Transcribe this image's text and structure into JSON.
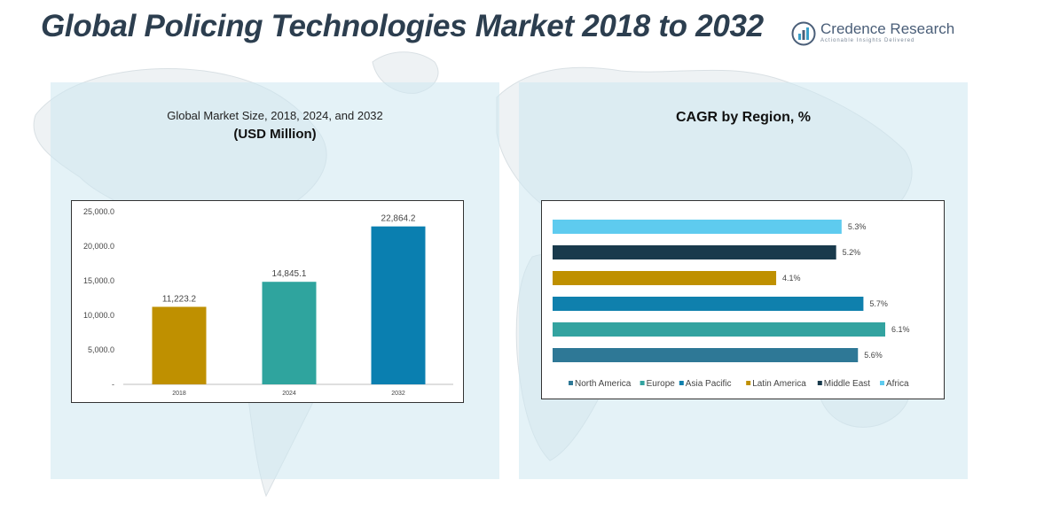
{
  "header": {
    "title": "Global Policing Technologies Market 2018 to 2032",
    "logo_name": "Credence Research",
    "logo_tagline": "Actionable Insights Delivered"
  },
  "left_panel": {
    "title": "Global Market Size, 2018, 2024, and 2032",
    "subtitle": "(USD Million)"
  },
  "right_panel": {
    "title": "CAGR by Region, %"
  },
  "chart_data": [
    {
      "type": "bar",
      "title": "Global Market Size, 2018, 2024, and 2032",
      "ylabel": "USD Million",
      "categories": [
        "2018",
        "2024",
        "2032"
      ],
      "values": [
        11223.2,
        14845.1,
        22864.2
      ],
      "value_labels": [
        "11,223.2",
        "14,845.1",
        "22,864.2"
      ],
      "colors": [
        "#bf9000",
        "#2fa49e",
        "#0a7fb0"
      ],
      "ylim": [
        0,
        25000
      ],
      "yticks": [
        0,
        5000,
        10000,
        15000,
        20000,
        25000
      ],
      "ytick_labels": [
        "-",
        "5,000.0",
        "10,000.0",
        "15,000.0",
        "20,000.0",
        "25,000.0"
      ],
      "grid": false
    },
    {
      "type": "bar",
      "orientation": "horizontal",
      "title": "CAGR by Region, %",
      "series": [
        {
          "name": "North America",
          "value": 5.6,
          "label": "5.6%",
          "color": "#2e7896"
        },
        {
          "name": "Europe",
          "value": 6.1,
          "label": "6.1%",
          "color": "#33a3a0"
        },
        {
          "name": "Asia Pacific",
          "value": 5.7,
          "label": "5.7%",
          "color": "#0f80ad"
        },
        {
          "name": "Latin America",
          "value": 4.1,
          "label": "4.1%",
          "color": "#bf9000"
        },
        {
          "name": "Middle East",
          "value": 5.2,
          "label": "5.2%",
          "color": "#193a4c"
        },
        {
          "name": "Africa",
          "value": 5.3,
          "label": "5.3%",
          "color": "#5ecbef"
        }
      ],
      "xlim": [
        0,
        6.1
      ],
      "legend": "bottom",
      "grid": false
    }
  ]
}
